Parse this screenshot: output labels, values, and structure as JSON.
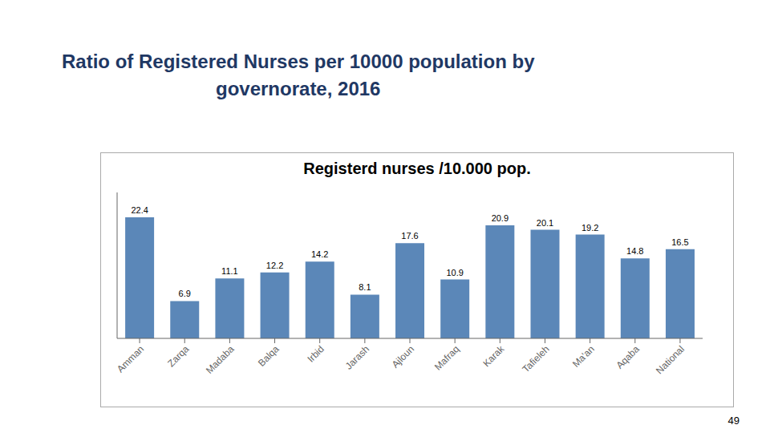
{
  "chart_data": {
    "type": "bar",
    "title": "Ratio of Registered Nurses per 10000 population by\ngovernorate, 2016",
    "subtitle": "Registerd nurses /10.000 pop.",
    "categories": [
      "Amman",
      "Zarqa",
      "Madaba",
      "Balqa",
      "Irbid",
      "Jarash",
      "Ajloun",
      "Mafraq",
      "Karak",
      "Tafieleh",
      "Ma'an",
      "Aqaba",
      "National"
    ],
    "values": [
      22.4,
      6.9,
      11.1,
      12.2,
      14.2,
      8.1,
      17.6,
      10.9,
      20.9,
      20.1,
      19.2,
      14.8,
      16.5
    ],
    "color": "#5B87B8",
    "ylim": [
      0,
      27
    ],
    "grid": false,
    "data_labels": true,
    "tick_labels": "x",
    "annotations": [
      "49"
    ]
  }
}
